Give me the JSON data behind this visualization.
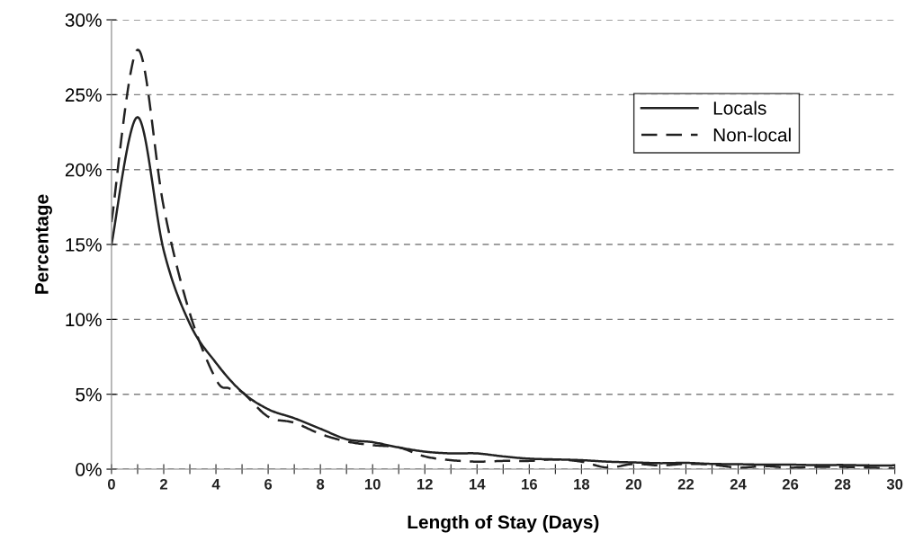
{
  "chart_data": {
    "type": "line",
    "xlabel": "Length of Stay (Days)",
    "ylabel": "Percentage",
    "x": [
      0,
      1,
      2,
      3,
      4,
      5,
      6,
      7,
      8,
      9,
      10,
      11,
      12,
      13,
      14,
      15,
      16,
      17,
      18,
      19,
      20,
      21,
      22,
      23,
      24,
      25,
      26,
      27,
      28,
      29,
      30
    ],
    "series": [
      {
        "name": "Locals",
        "color": "#222222",
        "line_style": "solid",
        "values": [
          15.0,
          23.5,
          14.6,
          9.7,
          7.1,
          5.15,
          4.0,
          3.4,
          2.7,
          2.0,
          1.8,
          1.45,
          1.17,
          1.05,
          1.05,
          0.85,
          0.7,
          0.65,
          0.6,
          0.5,
          0.45,
          0.4,
          0.42,
          0.35,
          0.33,
          0.3,
          0.3,
          0.27,
          0.28,
          0.25,
          0.25
        ]
      },
      {
        "name": "Non-local",
        "color": "#222222",
        "line_style": "dashed",
        "x": [
          0,
          1,
          2,
          3,
          4,
          4.5,
          5,
          6,
          7,
          8,
          9,
          10,
          11,
          12,
          13,
          14,
          15,
          16,
          17,
          18,
          19,
          20,
          21,
          22,
          23,
          24,
          25,
          26,
          27,
          28,
          29,
          30
        ],
        "values": [
          16.5,
          28.0,
          17.5,
          10.4,
          6.0,
          5.4,
          5.15,
          3.5,
          3.1,
          2.35,
          1.85,
          1.6,
          1.45,
          0.85,
          0.6,
          0.5,
          0.55,
          0.55,
          0.65,
          0.5,
          0.1,
          0.35,
          0.25,
          0.35,
          0.3,
          0.1,
          0.2,
          0.1,
          0.15,
          0.15,
          0.1,
          0.05
        ]
      }
    ],
    "xlim": [
      0,
      30
    ],
    "xticks": [
      0,
      {
        "value": 1,
        "label": null
      },
      2,
      {
        "value": 3,
        "label": null
      },
      4,
      {
        "value": 5,
        "label": null
      },
      6,
      {
        "value": 7,
        "label": null
      },
      8,
      {
        "value": 9,
        "label": null
      },
      10,
      {
        "value": 11,
        "label": null
      },
      12,
      {
        "value": 13,
        "label": null
      },
      14,
      {
        "value": 15,
        "label": null
      },
      16,
      {
        "value": 17,
        "label": null
      },
      18,
      {
        "value": 19,
        "label": null
      },
      20,
      {
        "value": 21,
        "label": null
      },
      22,
      {
        "value": 23,
        "label": null
      },
      24,
      {
        "value": 25,
        "label": null
      },
      26,
      {
        "value": 27,
        "label": null
      },
      28,
      {
        "value": 29,
        "label": null
      },
      30
    ],
    "ylim": [
      0,
      30
    ],
    "yticks": [
      {
        "value": 0,
        "label": "0%"
      },
      {
        "value": 5,
        "label": "5%"
      },
      {
        "value": 10,
        "label": "10%"
      },
      {
        "value": 15,
        "label": "15%"
      },
      {
        "value": 20,
        "label": "20%"
      },
      {
        "value": 25,
        "label": "25%"
      },
      {
        "value": 30,
        "label": "30%"
      }
    ],
    "grid": "y",
    "legend": "right",
    "marker": "none"
  }
}
